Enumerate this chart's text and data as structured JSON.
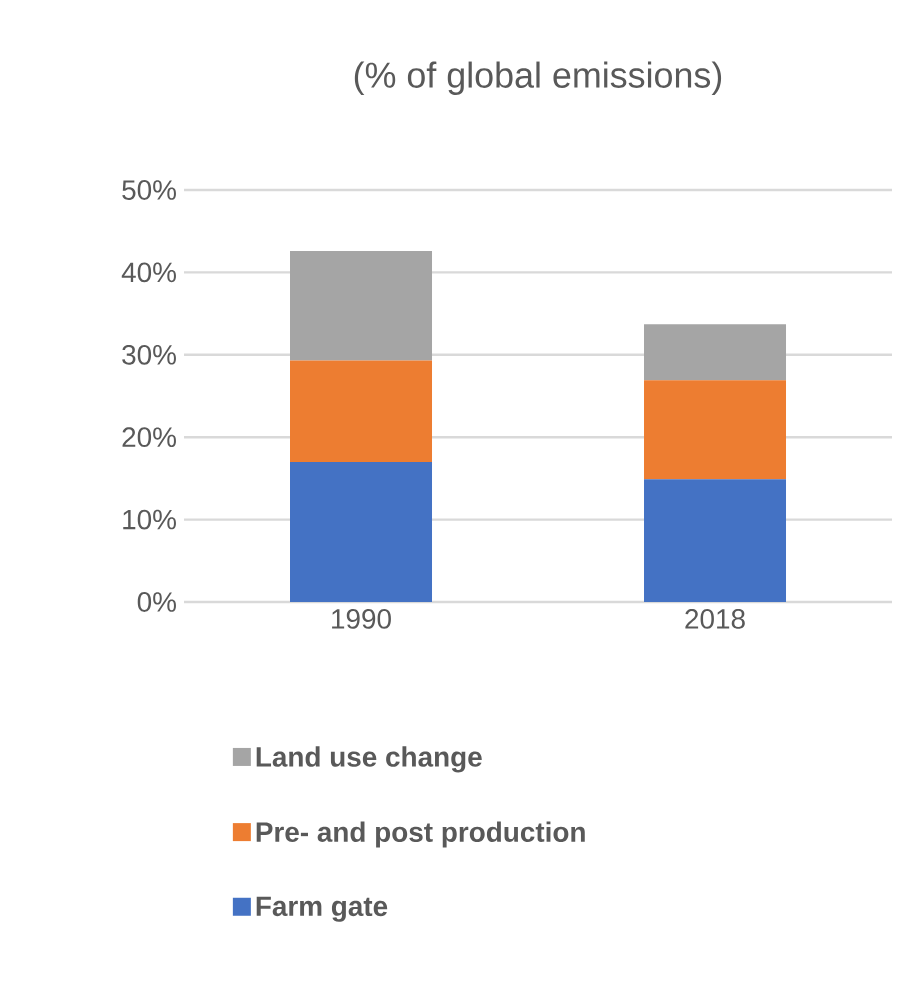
{
  "chart_data": {
    "type": "bar",
    "stacked": true,
    "title": "(% of global emissions)",
    "categories": [
      "1990",
      "2018"
    ],
    "series": [
      {
        "name": "Farm gate",
        "color": "#4472c4",
        "values": [
          17.0,
          14.9
        ]
      },
      {
        "name": "Pre- and post production",
        "color": "#ed7d31",
        "values": [
          12.3,
          12.0
        ]
      },
      {
        "name": "Land use change",
        "color": "#a5a5a5",
        "values": [
          13.3,
          6.8
        ]
      }
    ],
    "ylim": [
      0,
      50
    ],
    "yticks": [
      {
        "value": 0,
        "label": "0%"
      },
      {
        "value": 10,
        "label": "10%"
      },
      {
        "value": 20,
        "label": "20%"
      },
      {
        "value": 30,
        "label": "30%"
      },
      {
        "value": 40,
        "label": "40%"
      },
      {
        "value": 50,
        "label": "50%"
      }
    ],
    "grid": "y",
    "legend": "bottom"
  }
}
